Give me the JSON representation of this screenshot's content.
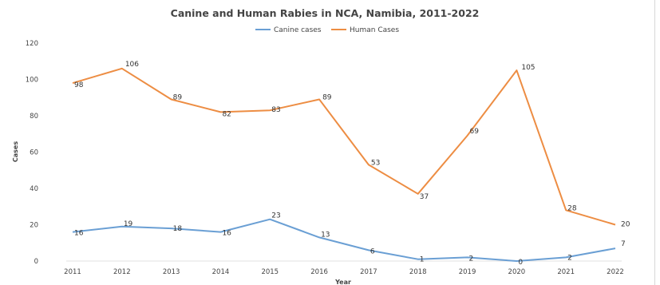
{
  "chart_data": {
    "type": "line",
    "title": "Canine and Human Rabies in NCA, Namibia, 2011-2022",
    "xlabel": "Year",
    "ylabel": "Cases",
    "ylim": [
      0,
      120
    ],
    "yticks": [
      0,
      20,
      40,
      60,
      80,
      100,
      120
    ],
    "grid": false,
    "legend": "top",
    "x": [
      "2011",
      "2012",
      "2013",
      "2014",
      "2015",
      "2016",
      "2017",
      "2018",
      "2019",
      "2020",
      "2021",
      "2022"
    ],
    "series": [
      {
        "name": "Canine cases",
        "color": "#6a9fd4",
        "values": [
          16,
          19,
          18,
          16,
          23,
          13,
          6,
          1,
          2,
          0,
          2,
          7
        ]
      },
      {
        "name": "Human Cases",
        "color": "#ed8d43",
        "values": [
          98,
          106,
          89,
          82,
          83,
          89,
          53,
          37,
          69,
          105,
          28,
          20
        ]
      }
    ]
  }
}
